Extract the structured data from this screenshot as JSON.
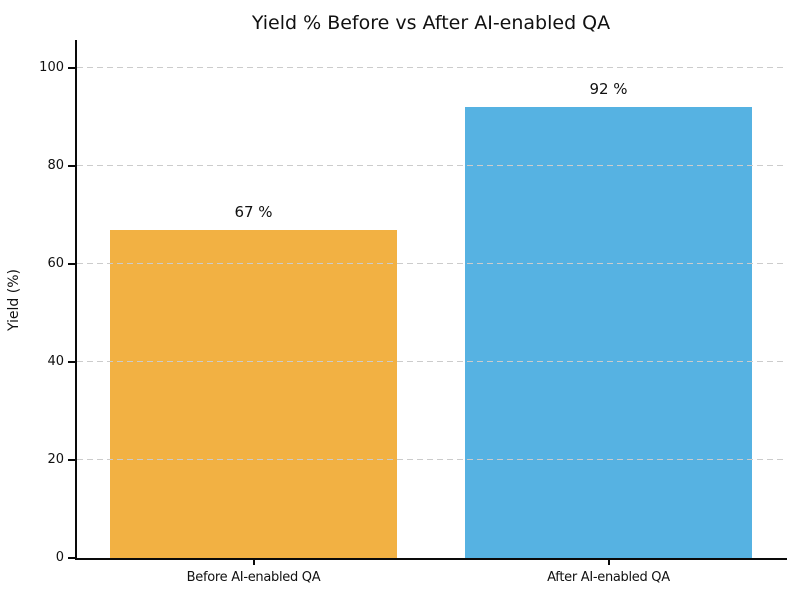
{
  "chart_data": {
    "type": "bar",
    "title": "Yield % Before vs After AI-enabled QA",
    "xlabel": "",
    "ylabel": "Yield (%)",
    "categories": [
      "Before AI-enabled QA",
      "After AI-enabled QA"
    ],
    "values": [
      67,
      92
    ],
    "bar_value_labels": [
      "67 %",
      "92 %"
    ],
    "bar_colors": [
      "#F2B143",
      "#56B2E2"
    ],
    "yticks": [
      0,
      20,
      40,
      60,
      80,
      100
    ],
    "ylim": [
      0,
      105.7
    ],
    "xlim": [
      -0.5,
      1.5
    ],
    "bar_width": 0.81,
    "grid": "horizontal-dashed",
    "gridline_color": "#cccccc",
    "legend": "none"
  }
}
